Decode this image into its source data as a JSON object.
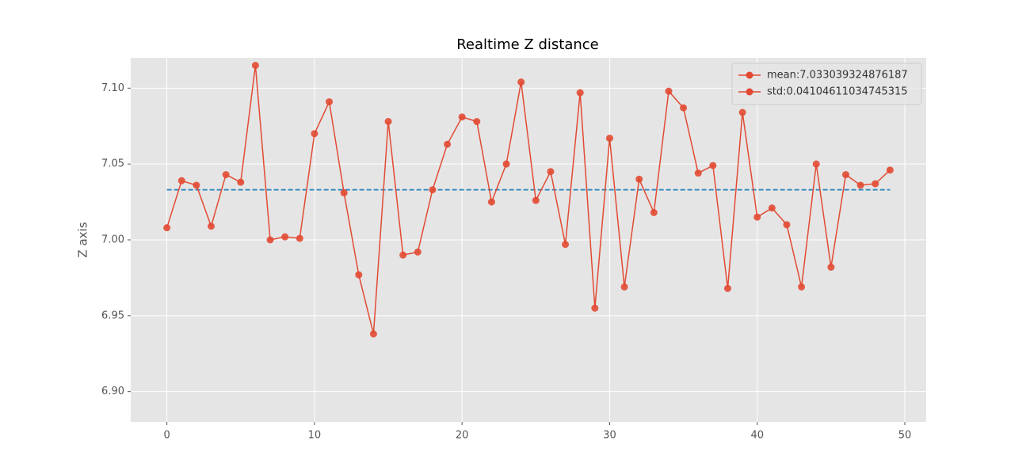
{
  "chart_data": {
    "type": "line",
    "title": "Realtime Z distance",
    "ylabel": "Z axis",
    "x": [
      0,
      1,
      2,
      3,
      4,
      5,
      6,
      7,
      8,
      9,
      10,
      11,
      12,
      13,
      14,
      15,
      16,
      17,
      18,
      19,
      20,
      21,
      22,
      23,
      24,
      25,
      26,
      27,
      28,
      29,
      30,
      31,
      32,
      33,
      34,
      35,
      36,
      37,
      38,
      39,
      40,
      41,
      42,
      43,
      44,
      45,
      46,
      47,
      48,
      49
    ],
    "series": [
      {
        "color": "#e24a33",
        "values": [
          7.008,
          7.039,
          7.036,
          7.009,
          7.043,
          7.038,
          7.115,
          7.0,
          7.002,
          7.001,
          7.07,
          7.091,
          7.031,
          6.977,
          6.938,
          7.078,
          6.99,
          6.992,
          7.033,
          7.063,
          7.081,
          7.078,
          7.025,
          7.05,
          7.104,
          7.026,
          7.045,
          6.997,
          7.097,
          6.955,
          7.067,
          6.969,
          7.04,
          7.018,
          7.098,
          7.087,
          7.044,
          7.049,
          6.968,
          7.084,
          7.015,
          7.021,
          7.01,
          6.969,
          7.05,
          6.982,
          7.043,
          7.036,
          7.037,
          7.046
        ]
      }
    ],
    "mean_line": {
      "value": 7.033039324876187,
      "color": "#348abd",
      "xrange": [
        0,
        49
      ]
    },
    "legend": {
      "entries": [
        "mean:7.033039324876187",
        "std:0.04104611034745315"
      ],
      "color": "#e24a33",
      "loc": "upper right"
    },
    "xlim": [
      -2.45,
      51.45
    ],
    "ylim": [
      6.88,
      7.12
    ],
    "xticks": [
      0,
      10,
      20,
      30,
      40,
      50
    ],
    "yticks": [
      {
        "value": 6.9,
        "label": "6.90"
      },
      {
        "value": 6.95,
        "label": "6.95"
      },
      {
        "value": 7.0,
        "label": "7.00"
      },
      {
        "value": 7.05,
        "label": "7.05"
      },
      {
        "value": 7.1,
        "label": "7.10"
      }
    ],
    "grid": true
  }
}
